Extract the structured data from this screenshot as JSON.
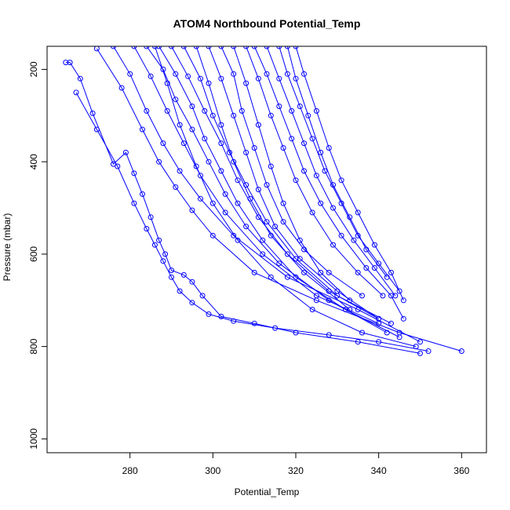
{
  "chart_data": {
    "type": "line",
    "title": "ATOM4 Northbound Potential_Temp",
    "xlabel": "Potential_Temp",
    "ylabel": "Pressure (mbar)",
    "xlim": [
      260,
      366
    ],
    "ylim": [
      1030,
      150
    ],
    "y_reversed": true,
    "x_ticks": [
      280,
      300,
      320,
      340,
      360
    ],
    "y_ticks": [
      200,
      400,
      600,
      800,
      1000
    ],
    "grid": false,
    "colors": {
      "series": "#0000ff",
      "axis": "#000000",
      "background": "#ffffff"
    },
    "marker": "open-circle",
    "series": [
      {
        "x": [
          264.5,
          265.5,
          268,
          271,
          276,
          279,
          281,
          283,
          285,
          287,
          288.5,
          290,
          293,
          295,
          297.5,
          302,
          310,
          320,
          335,
          350
        ],
        "y": [
          185,
          185,
          220,
          295,
          405,
          380,
          425,
          470,
          520,
          570,
          600,
          635,
          645,
          660,
          690,
          735,
          750,
          770,
          790,
          815
        ]
      },
      {
        "x": [
          267,
          272,
          277,
          281,
          284,
          286,
          288,
          290,
          292,
          295,
          299,
          305,
          315,
          328,
          340,
          352
        ],
        "y": [
          250,
          330,
          410,
          490,
          545,
          580,
          615,
          650,
          680,
          705,
          730,
          745,
          760,
          775,
          790,
          810
        ]
      },
      {
        "x": [
          272,
          278,
          283,
          287,
          291,
          295,
          300,
          310,
          325,
          345,
          360
        ],
        "y": [
          155,
          240,
          330,
          400,
          455,
          505,
          560,
          640,
          700,
          770,
          810
        ]
      },
      {
        "x": [
          276,
          280,
          284,
          288,
          292,
          297,
          305,
          318,
          335,
          350
        ],
        "y": [
          150,
          210,
          290,
          360,
          420,
          480,
          560,
          650,
          720,
          790
        ]
      },
      {
        "x": [
          281,
          285,
          289,
          293,
          297,
          303,
          312,
          325,
          340
        ],
        "y": [
          150,
          215,
          290,
          360,
          430,
          510,
          600,
          690,
          750
        ]
      },
      {
        "x": [
          284,
          288,
          291,
          295,
          299,
          303,
          308,
          316,
          328,
          342
        ],
        "y": [
          150,
          200,
          265,
          330,
          400,
          470,
          540,
          620,
          700,
          770
        ]
      },
      {
        "x": [
          287,
          291,
          295,
          298,
          302,
          306,
          312,
          320,
          332,
          345
        ],
        "y": [
          150,
          210,
          280,
          350,
          420,
          490,
          570,
          650,
          720,
          780
        ]
      },
      {
        "x": [
          290,
          294,
          298,
          302,
          306,
          311,
          318,
          328,
          340
        ],
        "y": [
          150,
          215,
          290,
          360,
          440,
          520,
          600,
          680,
          740
        ]
      },
      {
        "x": [
          293,
          297,
          300,
          304,
          308,
          313,
          320,
          330,
          343
        ],
        "y": [
          150,
          220,
          300,
          380,
          450,
          530,
          610,
          690,
          750
        ]
      },
      {
        "x": [
          296,
          299,
          302,
          305,
          309,
          314,
          322,
          333
        ],
        "y": [
          150,
          230,
          320,
          400,
          480,
          560,
          640,
          720
        ]
      },
      {
        "x": [
          299,
          302,
          305,
          308,
          311,
          315,
          321,
          330,
          340
        ],
        "y": [
          150,
          220,
          300,
          380,
          460,
          540,
          610,
          680,
          740
        ]
      },
      {
        "x": [
          302,
          305,
          307,
          310,
          313,
          317,
          322,
          328,
          336
        ],
        "y": [
          150,
          210,
          290,
          370,
          450,
          530,
          590,
          640,
          690
        ]
      },
      {
        "x": [
          305,
          308,
          311,
          314,
          317,
          321,
          326,
          333
        ],
        "y": [
          150,
          230,
          320,
          410,
          490,
          570,
          640,
          700
        ]
      },
      {
        "x": [
          308,
          311,
          314,
          317,
          320,
          324,
          329,
          335,
          341
        ],
        "y": [
          150,
          220,
          300,
          370,
          440,
          510,
          580,
          640,
          690
        ]
      },
      {
        "x": [
          310,
          313,
          316,
          319,
          322,
          326,
          331,
          337,
          343,
          346
        ],
        "y": [
          150,
          210,
          280,
          350,
          420,
          490,
          560,
          630,
          690,
          740
        ]
      },
      {
        "x": [
          313,
          316,
          319,
          322,
          325,
          329,
          334,
          339,
          344
        ],
        "y": [
          150,
          220,
          290,
          360,
          430,
          500,
          570,
          630,
          690
        ]
      },
      {
        "x": [
          316,
          318,
          321,
          324,
          327,
          331,
          335,
          340,
          345
        ],
        "y": [
          150,
          210,
          280,
          350,
          420,
          490,
          560,
          620,
          680
        ]
      },
      {
        "x": [
          318,
          320,
          323,
          326,
          329,
          333,
          337,
          342
        ],
        "y": [
          150,
          220,
          300,
          380,
          450,
          520,
          590,
          650
        ]
      },
      {
        "x": [
          320,
          322,
          325,
          328,
          331,
          335,
          339,
          343,
          346
        ],
        "y": [
          150,
          210,
          290,
          370,
          440,
          510,
          580,
          640,
          700
        ]
      },
      {
        "x": [
          286,
          289,
          292,
          296,
          300,
          306,
          314,
          324,
          336,
          349
        ],
        "y": [
          150,
          230,
          320,
          410,
          490,
          570,
          650,
          720,
          770,
          800
        ]
      }
    ]
  }
}
